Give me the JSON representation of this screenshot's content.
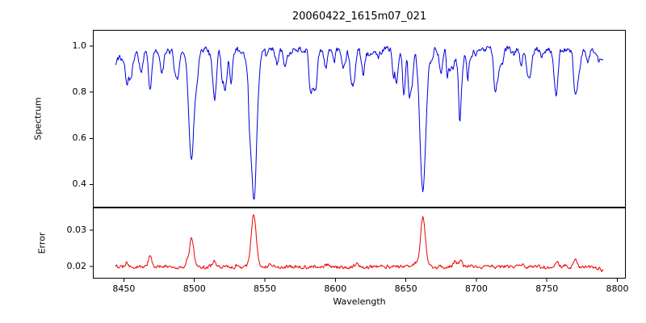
{
  "figure": {
    "title": "20060422_1615m07_021",
    "xlabel": "Wavelength",
    "background_color": "#ffffff",
    "text_color": "#000000"
  },
  "chart_data": [
    {
      "type": "line",
      "name": "spectrum",
      "ylabel": "Spectrum",
      "line_color": "#0000dd",
      "xlim": [
        8428,
        8806
      ],
      "ylim": [
        0.3,
        1.07
      ],
      "yticks": [
        0.4,
        0.6,
        0.8,
        1.0
      ],
      "ytick_decimals": 1,
      "x_start": 8444,
      "x_end": 8790,
      "x_step": 0.5,
      "continuum_level": 0.985,
      "noise_amplitude": 0.012,
      "left_edge_dip": 0.055,
      "left_edge_scale": 9,
      "right_edge_dip": 0.04,
      "right_edge_scale": 5,
      "seed": 20060422,
      "micro_lines": {
        "count": 85,
        "min_depth": 0.015,
        "max_depth": 0.14,
        "min_width": 0.5,
        "max_width": 1.4
      },
      "absorption_lines": [
        {
          "center": 8452.0,
          "depth": 0.12,
          "width": 1.1
        },
        {
          "center": 8468.5,
          "depth": 0.14,
          "width": 1.2
        },
        {
          "center": 8498.0,
          "depth": 0.45,
          "width": 1.9
        },
        {
          "center": 8514.1,
          "depth": 0.16,
          "width": 1.2
        },
        {
          "center": 8526.0,
          "depth": 0.1,
          "width": 1.0
        },
        {
          "center": 8542.1,
          "depth": 0.62,
          "width": 2.2
        },
        {
          "center": 8582.3,
          "depth": 0.1,
          "width": 1.1
        },
        {
          "center": 8611.0,
          "depth": 0.09,
          "width": 1.0
        },
        {
          "center": 8648.5,
          "depth": 0.1,
          "width": 1.0
        },
        {
          "center": 8662.1,
          "depth": 0.6,
          "width": 2.1
        },
        {
          "center": 8674.8,
          "depth": 0.1,
          "width": 1.0
        },
        {
          "center": 8688.6,
          "depth": 0.22,
          "width": 1.4
        },
        {
          "center": 8713.2,
          "depth": 0.1,
          "width": 1.0
        },
        {
          "center": 8736.0,
          "depth": 0.09,
          "width": 1.0
        },
        {
          "center": 8757.0,
          "depth": 0.13,
          "width": 1.1
        },
        {
          "center": 8772.0,
          "depth": 0.1,
          "width": 1.0
        }
      ]
    },
    {
      "type": "line",
      "name": "error",
      "ylabel": "Error",
      "line_color": "#ee0000",
      "xlim": [
        8428,
        8806
      ],
      "ylim": [
        0.0167,
        0.0362
      ],
      "yticks": [
        0.02,
        0.03
      ],
      "ytick_decimals": 2,
      "xticks": [
        8450,
        8500,
        8550,
        8600,
        8650,
        8700,
        8750,
        8800
      ],
      "x_start": 8444,
      "x_end": 8790,
      "x_step": 0.5,
      "baseline": 0.0199,
      "noise_amplitude": 0.00045,
      "right_edge_dip": 0.0012,
      "seed": 1615,
      "micro_bumps": {
        "count": 30,
        "max_height": 0.0012,
        "min_width": 0.7,
        "max_width": 1.5
      },
      "peaks": [
        {
          "center": 8452.0,
          "height": 0.0012,
          "width": 1.1
        },
        {
          "center": 8468.5,
          "height": 0.003,
          "width": 1.2
        },
        {
          "center": 8498.0,
          "height": 0.0078,
          "width": 1.6
        },
        {
          "center": 8514.1,
          "height": 0.0016,
          "width": 1.2
        },
        {
          "center": 8542.1,
          "height": 0.0145,
          "width": 1.8
        },
        {
          "center": 8662.1,
          "height": 0.0135,
          "width": 1.7
        },
        {
          "center": 8688.6,
          "height": 0.0018,
          "width": 1.3
        },
        {
          "center": 8757.0,
          "height": 0.0015,
          "width": 1.1
        },
        {
          "center": 8770.0,
          "height": 0.0016,
          "width": 1.1
        }
      ]
    }
  ]
}
